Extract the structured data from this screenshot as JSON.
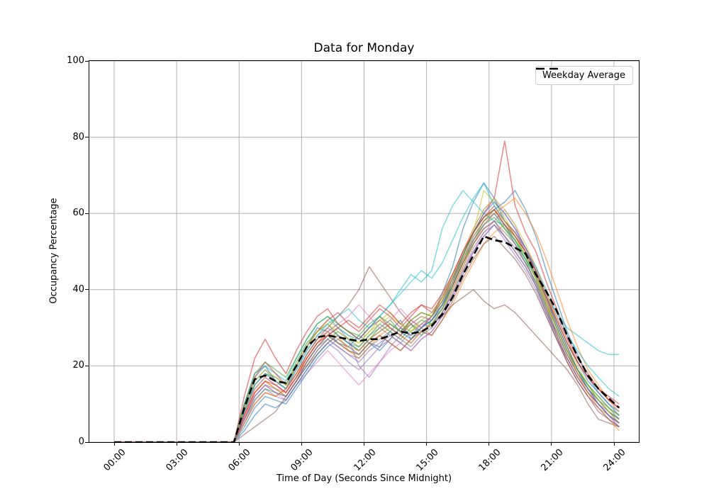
{
  "chart_data": {
    "type": "line",
    "title": "Data for Monday",
    "xlabel": "Time of Day (Seconds Since Midnight)",
    "ylabel": "Occupancy Percentage",
    "xlim_hours": [
      0,
      24
    ],
    "ylim": [
      0,
      100
    ],
    "x_ticks": [
      0,
      3,
      6,
      9,
      12,
      15,
      18,
      21,
      24
    ],
    "x_tick_labels": [
      "00:00",
      "03:00",
      "06:00",
      "09:00",
      "12:00",
      "15:00",
      "18:00",
      "21:00",
      "24:00"
    ],
    "y_ticks": [
      0,
      20,
      40,
      60,
      80,
      100
    ],
    "y_tick_labels": [
      "0",
      "20",
      "40",
      "60",
      "80",
      "100"
    ],
    "grid": true,
    "grid_color": "#b0b0b0",
    "legend_position": "upper right",
    "series_x_start_hour": 5.75,
    "series_x_step_hours": 0.5,
    "note_flat_zero_until_hour": 5.75,
    "series_opacity": 0.55,
    "series_line_width": 1.5,
    "average_series": {
      "name": "Weekday Average",
      "color": "#000000",
      "line_style": "dashed",
      "line_width": 2.6,
      "values": [
        0,
        9,
        16.5,
        17.5,
        16,
        15.5,
        20,
        25,
        27.5,
        28,
        27.5,
        27,
        26.5,
        27,
        27,
        28,
        29,
        28.5,
        29,
        30.5,
        33.5,
        38,
        44,
        49,
        54,
        53,
        52.5,
        51,
        49.5,
        44,
        39.5,
        34.5,
        28,
        22.5,
        17.5,
        14,
        11.5,
        9
      ]
    },
    "individual_series": [
      {
        "color": "#1f77b4",
        "values": [
          0,
          10,
          18,
          20,
          16,
          14,
          20,
          25,
          30,
          29,
          26,
          25,
          28,
          26,
          25,
          29,
          32,
          27,
          30,
          33,
          39,
          46,
          56,
          63,
          68,
          64,
          58,
          55,
          50,
          45,
          38,
          32,
          26,
          21,
          16,
          13,
          10,
          8
        ]
      },
      {
        "color": "#ff7f0e",
        "values": [
          0,
          6,
          13,
          16,
          14,
          12,
          16,
          20,
          23,
          26,
          28,
          24,
          22,
          25,
          28,
          26,
          24,
          27,
          30,
          28,
          32,
          36,
          42,
          47,
          52,
          55,
          57,
          54,
          49,
          43,
          36,
          28,
          21,
          16,
          12,
          9,
          7,
          5
        ]
      },
      {
        "color": "#2ca02c",
        "values": [
          0,
          8,
          15,
          18,
          17,
          15,
          21,
          26,
          29,
          31,
          28,
          26,
          24,
          27,
          30,
          32,
          29,
          31,
          28,
          32,
          36,
          41,
          47,
          53,
          58,
          60,
          56,
          52,
          48,
          41,
          34,
          29,
          23,
          18,
          14,
          11,
          8,
          6
        ]
      },
      {
        "color": "#d62728",
        "values": [
          0,
          12,
          22,
          27,
          22,
          18,
          24,
          29,
          33,
          35,
          31,
          29,
          27,
          30,
          33,
          30,
          28,
          32,
          30,
          33,
          38,
          44,
          50,
          55,
          60,
          64,
          79,
          62,
          55,
          50,
          42,
          35,
          28,
          22,
          18,
          14,
          11,
          9
        ]
      },
      {
        "color": "#9467bd",
        "values": [
          0,
          7,
          14,
          17,
          15,
          13,
          17,
          21,
          25,
          28,
          30,
          27,
          20,
          17,
          21,
          25,
          28,
          26,
          29,
          31,
          34,
          39,
          45,
          50,
          54,
          57,
          53,
          49,
          45,
          40,
          33,
          27,
          22,
          17,
          13,
          10,
          8,
          5
        ]
      },
      {
        "color": "#8c564b",
        "values": [
          0,
          5,
          10,
          13,
          12,
          14,
          18,
          23,
          27,
          30,
          33,
          36,
          40,
          46,
          42,
          38,
          34,
          31,
          29,
          31,
          33,
          36,
          38,
          40,
          37,
          35,
          36,
          34,
          31,
          28,
          25,
          22,
          19,
          15,
          10,
          6,
          5,
          4
        ]
      },
      {
        "color": "#e377c2",
        "values": [
          0,
          6,
          12,
          15,
          13,
          11,
          15,
          18,
          21,
          24,
          21,
          18,
          15,
          18,
          21,
          24,
          26,
          24,
          27,
          29,
          33,
          38,
          44,
          50,
          55,
          58,
          61,
          57,
          50,
          44,
          37,
          30,
          24,
          18,
          14,
          10,
          7,
          5
        ]
      },
      {
        "color": "#7f7f7f",
        "values": [
          0,
          9,
          16,
          19,
          16,
          14,
          19,
          24,
          28,
          30,
          28,
          26,
          25,
          28,
          30,
          28,
          26,
          29,
          31,
          30,
          34,
          40,
          46,
          52,
          56,
          58,
          55,
          52,
          47,
          42,
          35,
          29,
          23,
          18,
          14,
          11,
          9,
          6
        ]
      },
      {
        "color": "#bcbd22",
        "values": [
          0,
          8,
          14,
          17,
          15,
          16,
          20,
          25,
          29,
          32,
          30,
          28,
          26,
          29,
          32,
          34,
          31,
          29,
          31,
          33,
          37,
          42,
          49,
          55,
          66,
          63,
          59,
          54,
          49,
          43,
          36,
          30,
          24,
          19,
          15,
          12,
          9,
          7
        ]
      },
      {
        "color": "#17becf",
        "values": [
          0,
          10,
          17,
          20,
          18,
          16,
          22,
          27,
          31,
          33,
          30,
          28,
          27,
          30,
          33,
          36,
          40,
          44,
          42,
          45,
          56,
          62,
          66,
          63,
          60,
          58,
          57,
          53,
          48,
          44,
          38,
          34,
          30,
          28,
          26,
          24,
          23,
          23
        ]
      },
      {
        "color": "#1f77b4",
        "values": [
          0,
          4,
          9,
          12,
          11,
          10,
          14,
          18,
          22,
          25,
          27,
          25,
          23,
          26,
          24,
          27,
          30,
          28,
          30,
          32,
          35,
          41,
          48,
          54,
          58,
          61,
          63,
          66,
          61,
          54,
          45,
          37,
          29,
          23,
          17,
          13,
          10,
          7
        ]
      },
      {
        "color": "#ff7f0e",
        "values": [
          0,
          7,
          13,
          16,
          14,
          13,
          17,
          22,
          26,
          28,
          26,
          24,
          23,
          26,
          28,
          30,
          28,
          26,
          29,
          31,
          35,
          40,
          46,
          52,
          57,
          60,
          62,
          64,
          60,
          55,
          48,
          40,
          32,
          25,
          19,
          15,
          11,
          8
        ]
      },
      {
        "color": "#2ca02c",
        "values": [
          0,
          6,
          11,
          14,
          13,
          12,
          16,
          20,
          24,
          27,
          29,
          27,
          25,
          28,
          31,
          29,
          27,
          30,
          32,
          31,
          35,
          41,
          47,
          53,
          57,
          59,
          56,
          53,
          49,
          44,
          37,
          31,
          25,
          19,
          15,
          11,
          8,
          6
        ]
      },
      {
        "color": "#d62728",
        "values": [
          0,
          9,
          17,
          21,
          18,
          15,
          20,
          25,
          29,
          32,
          34,
          31,
          29,
          32,
          35,
          33,
          30,
          33,
          36,
          34,
          38,
          43,
          49,
          55,
          59,
          62,
          58,
          55,
          51,
          46,
          39,
          33,
          27,
          21,
          17,
          14,
          12,
          10
        ]
      },
      {
        "color": "#9467bd",
        "values": [
          0,
          5,
          11,
          14,
          12,
          11,
          15,
          19,
          23,
          26,
          24,
          21,
          19,
          22,
          25,
          27,
          30,
          28,
          31,
          33,
          36,
          42,
          48,
          53,
          57,
          60,
          57,
          52,
          47,
          42,
          35,
          28,
          22,
          17,
          13,
          10,
          7,
          4
        ]
      },
      {
        "color": "#8c564b",
        "values": [
          0,
          8,
          15,
          18,
          16,
          14,
          18,
          23,
          27,
          29,
          31,
          29,
          27,
          30,
          32,
          30,
          28,
          31,
          33,
          32,
          36,
          41,
          47,
          52,
          56,
          58,
          54,
          50,
          46,
          41,
          34,
          28,
          22,
          17,
          13,
          10,
          7,
          5
        ]
      },
      {
        "color": "#e377c2",
        "values": [
          0,
          7,
          14,
          17,
          15,
          13,
          18,
          22,
          26,
          29,
          31,
          33,
          36,
          33,
          30,
          32,
          35,
          32,
          30,
          33,
          37,
          43,
          50,
          56,
          61,
          64,
          60,
          56,
          51,
          45,
          38,
          31,
          25,
          19,
          14,
          10,
          7,
          4
        ]
      },
      {
        "color": "#7f7f7f",
        "values": [
          0,
          6,
          12,
          15,
          14,
          12,
          16,
          21,
          25,
          27,
          25,
          23,
          22,
          25,
          27,
          29,
          27,
          25,
          28,
          30,
          34,
          39,
          45,
          51,
          55,
          57,
          54,
          51,
          47,
          42,
          35,
          29,
          23,
          18,
          14,
          11,
          8,
          6
        ]
      },
      {
        "color": "#bcbd22",
        "values": [
          0,
          9,
          16,
          19,
          17,
          15,
          20,
          25,
          29,
          31,
          29,
          27,
          26,
          29,
          31,
          33,
          31,
          29,
          32,
          34,
          38,
          44,
          50,
          56,
          61,
          64,
          61,
          57,
          52,
          46,
          39,
          32,
          26,
          20,
          15,
          11,
          8,
          5
        ]
      },
      {
        "color": "#17becf",
        "values": [
          0,
          8,
          15,
          18,
          16,
          14,
          19,
          24,
          28,
          31,
          33,
          35,
          32,
          30,
          33,
          36,
          39,
          42,
          45,
          43,
          47,
          53,
          59,
          64,
          68,
          62,
          58,
          54,
          50,
          46,
          40,
          34,
          28,
          24,
          20,
          17,
          14,
          12
        ]
      },
      {
        "color": "#1f77b4",
        "values": [
          0,
          3,
          7,
          10,
          9,
          11,
          15,
          19,
          23,
          26,
          28,
          26,
          24,
          27,
          29,
          31,
          29,
          27,
          30,
          32,
          36,
          42,
          49,
          55,
          60,
          63,
          60,
          56,
          51,
          45,
          38,
          31,
          25,
          19,
          14,
          10,
          7,
          5
        ]
      },
      {
        "color": "#ff7f0e",
        "values": [
          0,
          5,
          10,
          13,
          12,
          14,
          18,
          22,
          26,
          29,
          27,
          25,
          24,
          27,
          29,
          31,
          29,
          32,
          34,
          33,
          37,
          42,
          48,
          54,
          58,
          61,
          58,
          54,
          50,
          44,
          37,
          30,
          24,
          18,
          13,
          9,
          6,
          3
        ]
      },
      {
        "color": "#2ca02c",
        "values": [
          0,
          10,
          18,
          21,
          19,
          17,
          22,
          27,
          31,
          33,
          31,
          29,
          28,
          31,
          33,
          31,
          29,
          32,
          34,
          33,
          37,
          43,
          49,
          55,
          59,
          61,
          57,
          53,
          48,
          43,
          36,
          30,
          24,
          19,
          15,
          12,
          9,
          7
        ]
      },
      {
        "color": "#d62728",
        "values": [
          0,
          7,
          13,
          16,
          15,
          13,
          17,
          22,
          26,
          28,
          30,
          32,
          30,
          33,
          36,
          34,
          31,
          34,
          36,
          35,
          39,
          44,
          50,
          55,
          59,
          61,
          57,
          54,
          50,
          45,
          38,
          32,
          26,
          21,
          17,
          14,
          11,
          9
        ]
      },
      {
        "color": "#9467bd",
        "values": [
          0,
          6,
          12,
          15,
          13,
          12,
          16,
          20,
          24,
          27,
          25,
          23,
          21,
          24,
          26,
          28,
          26,
          24,
          27,
          29,
          33,
          38,
          44,
          50,
          54,
          57,
          54,
          50,
          46,
          41,
          34,
          27,
          21,
          16,
          12,
          9,
          6,
          4
        ]
      },
      {
        "color": "#8c564b",
        "values": [
          0,
          2,
          4,
          6,
          8,
          12,
          16,
          21,
          25,
          28,
          26,
          24,
          23,
          26,
          28,
          26,
          24,
          27,
          29,
          28,
          32,
          37,
          43,
          48,
          52,
          54,
          51,
          48,
          44,
          39,
          33,
          27,
          21,
          16,
          12,
          8,
          6,
          4
        ]
      }
    ]
  }
}
